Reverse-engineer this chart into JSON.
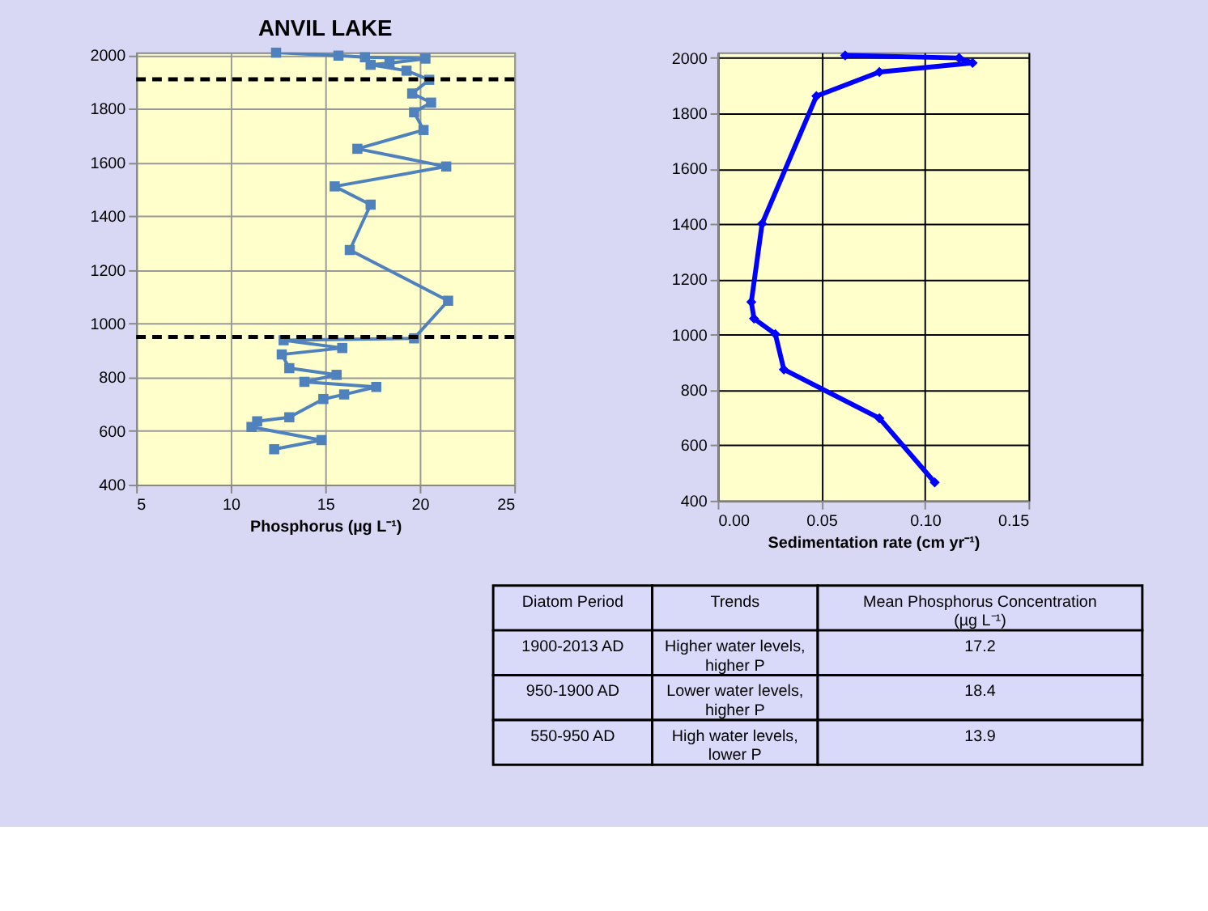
{
  "chart_data": [
    {
      "type": "line",
      "title": "ANVIL LAKE",
      "xlabel": "Phosphorus (µg L⁻¹)",
      "xlim": [
        5,
        25
      ],
      "xticks": [
        5,
        10,
        15,
        20,
        25
      ],
      "ylim": [
        400,
        2010
      ],
      "yticks": [
        400,
        600,
        800,
        1000,
        1200,
        1400,
        1600,
        1800,
        2000
      ],
      "grid": true,
      "marker": "square",
      "line_style": "solid",
      "series": [
        {
          "color": "#4f81bd",
          "x": [
            12.4,
            15.7,
            17.1,
            20.3,
            18.4,
            17.4,
            19.3,
            20.5,
            19.6,
            20.6,
            19.7,
            20.2,
            16.7,
            21.4,
            15.5,
            17.4,
            16.3,
            21.5,
            19.7,
            12.8,
            15.9,
            12.7,
            13.1,
            15.6,
            13.9,
            17.7,
            16.0,
            14.9,
            13.1,
            11.4,
            11.1,
            14.8,
            12.3
          ],
          "values": [
            2009,
            1998,
            1992,
            1987,
            1970,
            1964,
            1942,
            1908,
            1857,
            1823,
            1787,
            1721,
            1651,
            1585,
            1511,
            1443,
            1274,
            1085,
            945,
            938,
            909,
            885,
            834,
            809,
            783,
            764,
            736,
            719,
            651,
            636,
            615,
            566,
            532
          ]
        }
      ],
      "ref_lines": [
        {
          "axis": "y",
          "value": 1910,
          "color": "#000000",
          "line_style": "dashed"
        },
        {
          "axis": "y",
          "value": 950,
          "color": "#000000",
          "line_style": "dashed"
        }
      ]
    },
    {
      "type": "line",
      "xlabel": "Sedimentation rate (cm yr⁻¹)",
      "xlim": [
        0,
        0.15
      ],
      "xticks": [
        {
          "value": 0,
          "label": "0.00"
        },
        {
          "value": 0.05,
          "label": "0.05"
        },
        {
          "value": 0.1,
          "label": "0.10"
        },
        {
          "value": 0.15,
          "label": "0.15"
        }
      ],
      "ylim": [
        400,
        2020
      ],
      "yticks": [
        400,
        600,
        800,
        1000,
        1200,
        1400,
        1600,
        1800,
        2000
      ],
      "grid": true,
      "marker": "diamond",
      "line_style": "solid",
      "series": [
        {
          "color": "#0000ff",
          "x": [
            0.0615,
            0.1165,
            0.123,
            0.078,
            0.0476,
            0.0214,
            0.0162,
            0.0175,
            0.0278,
            0.0319,
            0.078,
            0.1047
          ],
          "values": [
            2009,
            2000,
            1982,
            1949,
            1862,
            1401,
            1118,
            1058,
            1002,
            874,
            698,
            466
          ]
        }
      ]
    },
    {
      "type": "other",
      "annotations": [
        "Diatom Period",
        "Trends",
        "Mean Phosphorus Concentration\n(µg L⁻¹)",
        "1900-2013 AD",
        "Higher water levels,\nhigher P",
        "17.2",
        "950-1900 AD",
        "Lower water levels,\nhigher P",
        "18.4",
        "550-950 AD",
        "High water levels,\nlower P",
        "13.9"
      ]
    }
  ]
}
